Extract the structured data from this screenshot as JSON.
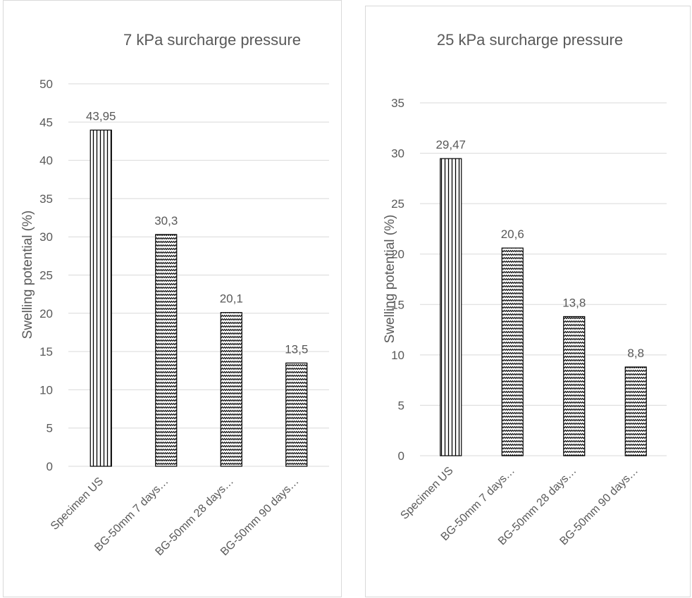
{
  "chart_data": [
    {
      "type": "bar",
      "title": "7 kPa surcharge pressure",
      "ylabel": "Swelling potential (%)",
      "xlabel": "",
      "categories": [
        "Specimen US",
        "BG-50mm 7 days…",
        "BG-50mm 28 days…",
        "BG-50mm 90 days…"
      ],
      "values": [
        43.95,
        30.3,
        20.1,
        13.5
      ],
      "data_labels": [
        "43,95",
        "30,3",
        "20,1",
        "13,5"
      ],
      "ylim": [
        0,
        50
      ],
      "yticks": [
        0,
        5,
        10,
        15,
        20,
        25,
        30,
        35,
        40,
        45,
        50
      ],
      "grid": true,
      "legend": "none",
      "patterns": [
        "vertical-lines",
        "wave",
        "wave",
        "wave"
      ]
    },
    {
      "type": "bar",
      "title": "25 kPa surcharge pressure",
      "ylabel": "Swelling potential (%)",
      "xlabel": "",
      "categories": [
        "Specimen US",
        "BG-50mm 7 days…",
        "BG-50mm 28 days…",
        "BG-50mm 90 days…"
      ],
      "values": [
        29.47,
        20.6,
        13.8,
        8.8
      ],
      "data_labels": [
        "29,47",
        "20,6",
        "13,8",
        "8,8"
      ],
      "ylim": [
        0,
        35
      ],
      "yticks": [
        0,
        5,
        10,
        15,
        20,
        25,
        30,
        35
      ],
      "grid": true,
      "legend": "none",
      "patterns": [
        "vertical-lines",
        "wave",
        "wave",
        "wave"
      ]
    }
  ],
  "colors": {
    "gridline": "#d9d9d9",
    "text": "#595959",
    "bar_stroke": "#000000"
  }
}
